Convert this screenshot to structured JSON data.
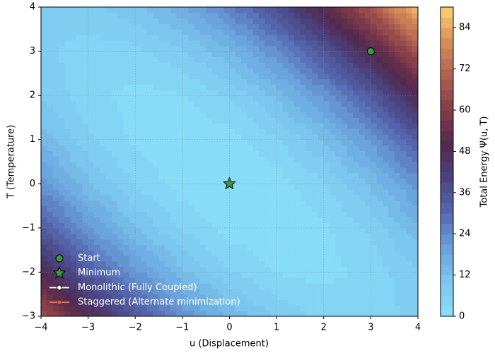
{
  "chart_data": {
    "type": "contourf",
    "xlabel": "u (Displacement)",
    "ylabel": "T (Temperature)",
    "colorbar_label": "Total Energy Ψ(u, T)",
    "x": [
      -4,
      -3,
      -2,
      -1,
      0,
      1,
      2,
      3,
      4
    ],
    "y": [
      -3,
      -2,
      -1,
      0,
      1,
      2,
      3,
      4
    ],
    "z": [
      [
        66.8,
        49.5,
        35,
        23.3,
        14.4,
        8.3,
        5,
        4.5,
        6.8
      ],
      [
        48.8,
        34,
        22,
        12.8,
        6.4,
        2.8,
        2,
        4,
        8.8
      ],
      [
        34,
        21.7,
        12.2,
        5.5,
        1.6,
        0.5,
        2.2,
        6.7,
        14
      ],
      [
        22.4,
        12.6,
        5.6,
        1.4,
        0,
        1.4,
        5.6,
        12.6,
        22.4
      ],
      [
        14,
        6.7,
        2.2,
        0.5,
        1.6,
        5.5,
        12.2,
        21.7,
        34
      ],
      [
        8.8,
        4,
        2,
        2.8,
        6.4,
        12.8,
        22,
        34,
        48.8
      ],
      [
        6.8,
        4.5,
        5,
        8.3,
        14.4,
        23.3,
        35,
        49.5,
        66.8
      ],
      [
        8,
        8.2,
        11.2,
        17,
        25.6,
        37,
        51.2,
        68.2,
        88
      ]
    ],
    "xlim": [
      -4,
      4
    ],
    "ylim": [
      -3,
      4
    ],
    "xticks": [
      {
        "value": -4,
        "label": "−4"
      },
      {
        "value": -3,
        "label": "−3"
      },
      {
        "value": -2,
        "label": "−2"
      },
      {
        "value": -1,
        "label": "−1"
      },
      0,
      1,
      2,
      3,
      4
    ],
    "yticks": [
      {
        "value": -3,
        "label": "−3"
      },
      {
        "value": -2,
        "label": "−2"
      },
      {
        "value": -1,
        "label": "−1"
      },
      0,
      1,
      2,
      3,
      4
    ],
    "clim": [
      0,
      90
    ],
    "cticks": [
      0,
      12,
      24,
      36,
      48,
      60,
      72,
      84
    ],
    "level_step": 3,
    "colormap": [
      "#89e0f9",
      "#7cc8ef",
      "#6aa2dc",
      "#566ab2",
      "#4b4481",
      "#52294f",
      "#823c48",
      "#b06050",
      "#d88e58",
      "#fdd272"
    ],
    "grid": true,
    "legend": "lower left",
    "markers": [
      {
        "name": "Start",
        "x": 3,
        "y": 3,
        "color": "#3c9a40",
        "shape": "circle"
      },
      {
        "name": "Minimum",
        "x": 0,
        "y": 0,
        "color": "#3c9a40",
        "shape": "star"
      }
    ],
    "lines": [
      {
        "name": "Monolithic (Fully Coupled)",
        "color": "#ffffff"
      },
      {
        "name": "Staggered (Alternate minimization)",
        "color": "#d9744a"
      }
    ]
  }
}
